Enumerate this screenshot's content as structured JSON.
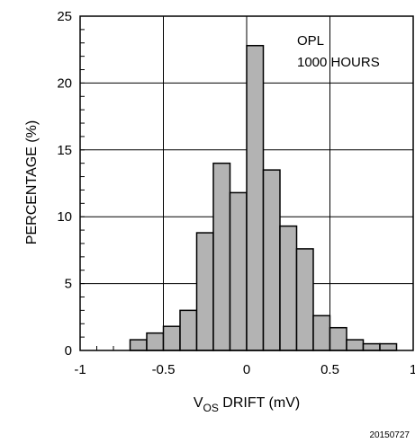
{
  "chart_data": {
    "type": "bar",
    "title": "",
    "xlabel_main": "V",
    "xlabel_sub": "OS",
    "xlabel_rest": " DRIFT (mV)",
    "ylabel": "PERCENTAGE (%)",
    "xlim": [
      -1,
      1
    ],
    "ylim": [
      0,
      25
    ],
    "xticks": [
      -1,
      -0.5,
      0,
      0.5,
      1
    ],
    "xtick_labels": [
      "-1",
      "-0.5",
      "0",
      "0.5",
      "1"
    ],
    "yticks": [
      0,
      5,
      10,
      15,
      20,
      25
    ],
    "ytick_labels": [
      "0",
      "5",
      "10",
      "15",
      "20",
      "25"
    ],
    "grid": true,
    "bin_width": 0.1,
    "bins": [
      {
        "x0": -0.7,
        "value": 0.8
      },
      {
        "x0": -0.6,
        "value": 1.3
      },
      {
        "x0": -0.5,
        "value": 1.8
      },
      {
        "x0": -0.4,
        "value": 3.0
      },
      {
        "x0": -0.3,
        "value": 8.8
      },
      {
        "x0": -0.2,
        "value": 14.0
      },
      {
        "x0": -0.1,
        "value": 11.8
      },
      {
        "x0": 0.0,
        "value": 22.8
      },
      {
        "x0": 0.1,
        "value": 13.5
      },
      {
        "x0": 0.2,
        "value": 9.3
      },
      {
        "x0": 0.3,
        "value": 7.6
      },
      {
        "x0": 0.4,
        "value": 2.6
      },
      {
        "x0": 0.5,
        "value": 1.7
      },
      {
        "x0": 0.6,
        "value": 0.8
      },
      {
        "x0": 0.7,
        "value": 0.5
      },
      {
        "x0": 0.8,
        "value": 0.5
      }
    ],
    "bar_color": "#b3b3b3",
    "annotations": [
      "OPL",
      "1000 HOURS"
    ]
  },
  "figure_code": "20150727"
}
